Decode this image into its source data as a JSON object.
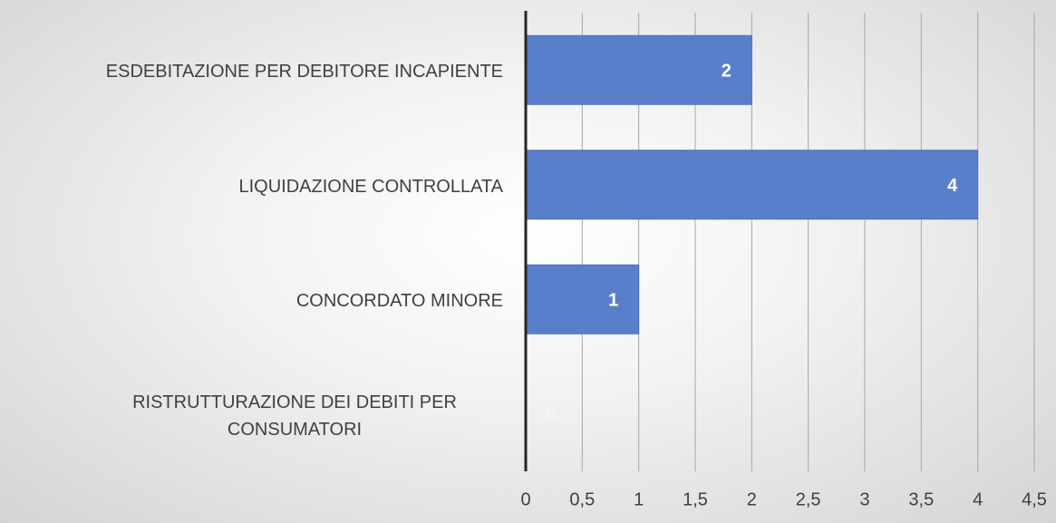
{
  "chart_data": {
    "type": "bar",
    "orientation": "horizontal",
    "categories": [
      "ESDEBITAZIONE PER DEBITORE INCAPIENTE",
      "LIQUIDAZIONE CONTROLLATA",
      "CONCORDATO  MINORE",
      "RISTRUTTURAZIONE DEI DEBITI PER CONSUMATORI"
    ],
    "values": [
      2,
      4,
      1,
      0
    ],
    "color": "#5a7fca",
    "xlim": [
      0,
      4.5
    ],
    "xticks": [
      0,
      {
        "value": 0.5,
        "label": "0,5"
      },
      1,
      {
        "value": 1.5,
        "label": "1,5"
      },
      2,
      {
        "value": 2.5,
        "label": "2,5"
      },
      3,
      {
        "value": 3.5,
        "label": "3,5"
      },
      4,
      {
        "value": 4.5,
        "label": "4,5"
      }
    ],
    "grid": true
  }
}
